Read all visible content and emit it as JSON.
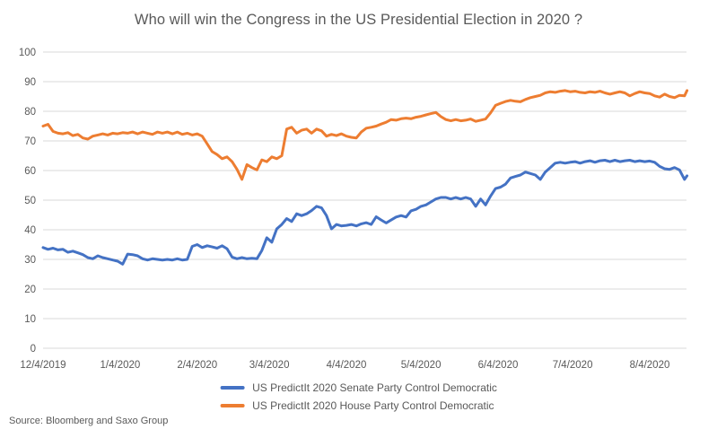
{
  "source": "Source: Bloomberg and Saxo Group",
  "chart_data": {
    "type": "line",
    "title": "Who will win the Congress in the US Presidential Election in 2020 ?",
    "xlabel": "",
    "ylabel": "",
    "ylim": [
      0,
      100
    ],
    "grid": "horizontal",
    "legend_position": "bottom",
    "style": {
      "gridline_color": "#D9D9D9",
      "text_color": "#595959",
      "title_color": "#595959",
      "background": "#FFFFFF"
    },
    "y_axis": {
      "ticks": [
        0,
        10,
        20,
        30,
        40,
        50,
        60,
        70,
        80,
        90,
        100
      ]
    },
    "x_axis": {
      "unit": "days from 12/4/2019",
      "range_days": [
        0,
        259
      ],
      "ticks": [
        {
          "label": "12/4/2019",
          "day": 0
        },
        {
          "label": "1/4/2020",
          "day": 31
        },
        {
          "label": "2/4/2020",
          "day": 62
        },
        {
          "label": "3/4/2020",
          "day": 91
        },
        {
          "label": "4/4/2020",
          "day": 122
        },
        {
          "label": "5/4/2020",
          "day": 152
        },
        {
          "label": "6/4/2020",
          "day": 183
        },
        {
          "label": "7/4/2020",
          "day": 213
        },
        {
          "label": "8/4/2020",
          "day": 244
        }
      ]
    },
    "x_days": [
      0,
      2,
      4,
      6,
      8,
      10,
      12,
      14,
      16,
      18,
      20,
      22,
      24,
      26,
      28,
      30,
      32,
      34,
      36,
      38,
      40,
      42,
      44,
      46,
      48,
      50,
      52,
      54,
      56,
      58,
      60,
      62,
      64,
      66,
      68,
      70,
      72,
      74,
      76,
      78,
      80,
      82,
      84,
      86,
      88,
      90,
      92,
      94,
      96,
      98,
      100,
      102,
      104,
      106,
      108,
      110,
      112,
      114,
      116,
      118,
      120,
      122,
      124,
      126,
      128,
      130,
      132,
      134,
      136,
      138,
      140,
      142,
      144,
      146,
      148,
      150,
      152,
      154,
      156,
      158,
      160,
      162,
      164,
      166,
      168,
      170,
      172,
      174,
      176,
      178,
      180,
      182,
      184,
      186,
      188,
      190,
      192,
      194,
      196,
      198,
      200,
      202,
      204,
      206,
      208,
      210,
      212,
      214,
      216,
      218,
      220,
      222,
      224,
      226,
      228,
      230,
      232,
      234,
      236,
      238,
      240,
      242,
      244,
      246,
      248,
      250,
      252,
      254,
      256,
      258,
      259
    ],
    "series": [
      {
        "key": "senate",
        "name": "US PredictIt 2020 Senate Party Control Democratic",
        "color": "#4472C4",
        "values": [
          34,
          33.4,
          33.8,
          33.2,
          33.4,
          32.4,
          32.8,
          32.2,
          31.6,
          30.6,
          30.2,
          31.2,
          30.6,
          30.2,
          29.8,
          29.4,
          28.4,
          31.8,
          31.6,
          31.2,
          30.2,
          29.8,
          30.2,
          30,
          29.8,
          30,
          29.8,
          30.2,
          29.8,
          30,
          34.4,
          35,
          34,
          34.6,
          34.2,
          33.8,
          34.6,
          33.6,
          30.8,
          30.2,
          30.6,
          30.2,
          30.4,
          30.2,
          33,
          37.3,
          35.8,
          40.3,
          41.8,
          43.8,
          42.8,
          45.4,
          44.8,
          45.4,
          46.5,
          47.9,
          47.4,
          44.8,
          40.3,
          41.8,
          41.3,
          41.5,
          41.8,
          41.3,
          42,
          42.4,
          41.8,
          44.4,
          43.3,
          42.3,
          43.3,
          44.3,
          44.8,
          44.3,
          46.4,
          46.9,
          47.9,
          48.4,
          49.4,
          50.4,
          50.9,
          50.9,
          50.4,
          50.9,
          50.4,
          50.9,
          50.4,
          47.9,
          50.4,
          48.4,
          51.4,
          53.9,
          54.4,
          55.4,
          57.5,
          58,
          58.5,
          59.5,
          59,
          58.5,
          57,
          59.5,
          61,
          62.5,
          62.8,
          62.5,
          62.8,
          63,
          62.5,
          63,
          63.3,
          62.8,
          63.3,
          63.5,
          63,
          63.5,
          63,
          63.3,
          63.5,
          63,
          63.3,
          63,
          63.2,
          62.8,
          61.4,
          60.6,
          60.4,
          61,
          60.2,
          57,
          58.2
        ]
      },
      {
        "key": "house",
        "name": "US PredictIt 2020 House Party Control Democratic",
        "color": "#ED7D31",
        "values": [
          75,
          75.6,
          73.2,
          72.6,
          72.4,
          72.8,
          71.8,
          72.2,
          71,
          70.6,
          71.6,
          72,
          72.4,
          72,
          72.6,
          72.4,
          72.8,
          72.6,
          73,
          72.4,
          73,
          72.6,
          72.2,
          73,
          72.6,
          73,
          72.4,
          73,
          72.2,
          72.6,
          72,
          72.4,
          71.6,
          69,
          66.4,
          65.4,
          64,
          64.6,
          63,
          60.4,
          57,
          62,
          61,
          60.2,
          63.6,
          63,
          64.6,
          64,
          65,
          74,
          74.6,
          72.6,
          73.6,
          74,
          72.6,
          74,
          73.4,
          71.6,
          72.2,
          71.8,
          72.4,
          71.6,
          71.2,
          71,
          73,
          74.3,
          74.6,
          75,
          75.7,
          76.3,
          77.2,
          77,
          77.5,
          77.7,
          77.5,
          78,
          78.3,
          78.8,
          79.2,
          79.6,
          78.2,
          77.2,
          76.8,
          77.2,
          76.8,
          77,
          77.4,
          76.6,
          77,
          77.4,
          79.5,
          82,
          82.7,
          83.3,
          83.7,
          83.4,
          83.2,
          84,
          84.6,
          85,
          85.4,
          86.2,
          86.6,
          86.4,
          86.8,
          87,
          86.6,
          86.8,
          86.4,
          86.2,
          86.6,
          86.4,
          86.8,
          86.2,
          85.8,
          86.2,
          86.6,
          86.2,
          85.2,
          86,
          86.6,
          86.2,
          86,
          85.2,
          84.8,
          85.8,
          85,
          84.6,
          85.4,
          85.2,
          87
        ]
      }
    ]
  }
}
